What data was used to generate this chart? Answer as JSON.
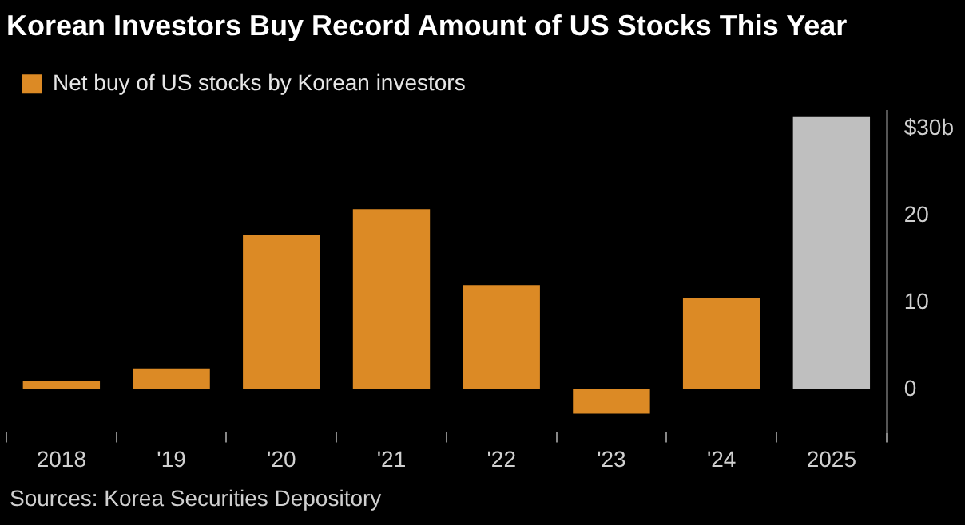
{
  "chart_data": {
    "type": "bar",
    "title": "Korean Investors Buy Record Amount of US Stocks This Year",
    "categories": [
      "2018",
      "'19",
      "'20",
      "'21",
      "'22",
      "'23",
      "'24",
      "2025"
    ],
    "series": [
      {
        "name": "Net buy of US stocks by Korean investors",
        "color": "#dc8a25",
        "colors": [
          "#dc8a25",
          "#dc8a25",
          "#dc8a25",
          "#dc8a25",
          "#dc8a25",
          "#dc8a25",
          "#dc8a25",
          "#bfbfbf"
        ],
        "values": [
          1.0,
          2.4,
          17.7,
          20.7,
          12.0,
          -2.8,
          10.5,
          31.3
        ]
      }
    ],
    "ylim": [
      -5,
      32
    ],
    "yticks": [
      0,
      10,
      20,
      {
        "value": 30,
        "label": "$30b"
      }
    ],
    "legend": "top left",
    "grid": false,
    "annotations": [
      "Sources: Korea Securities Depository"
    ]
  }
}
